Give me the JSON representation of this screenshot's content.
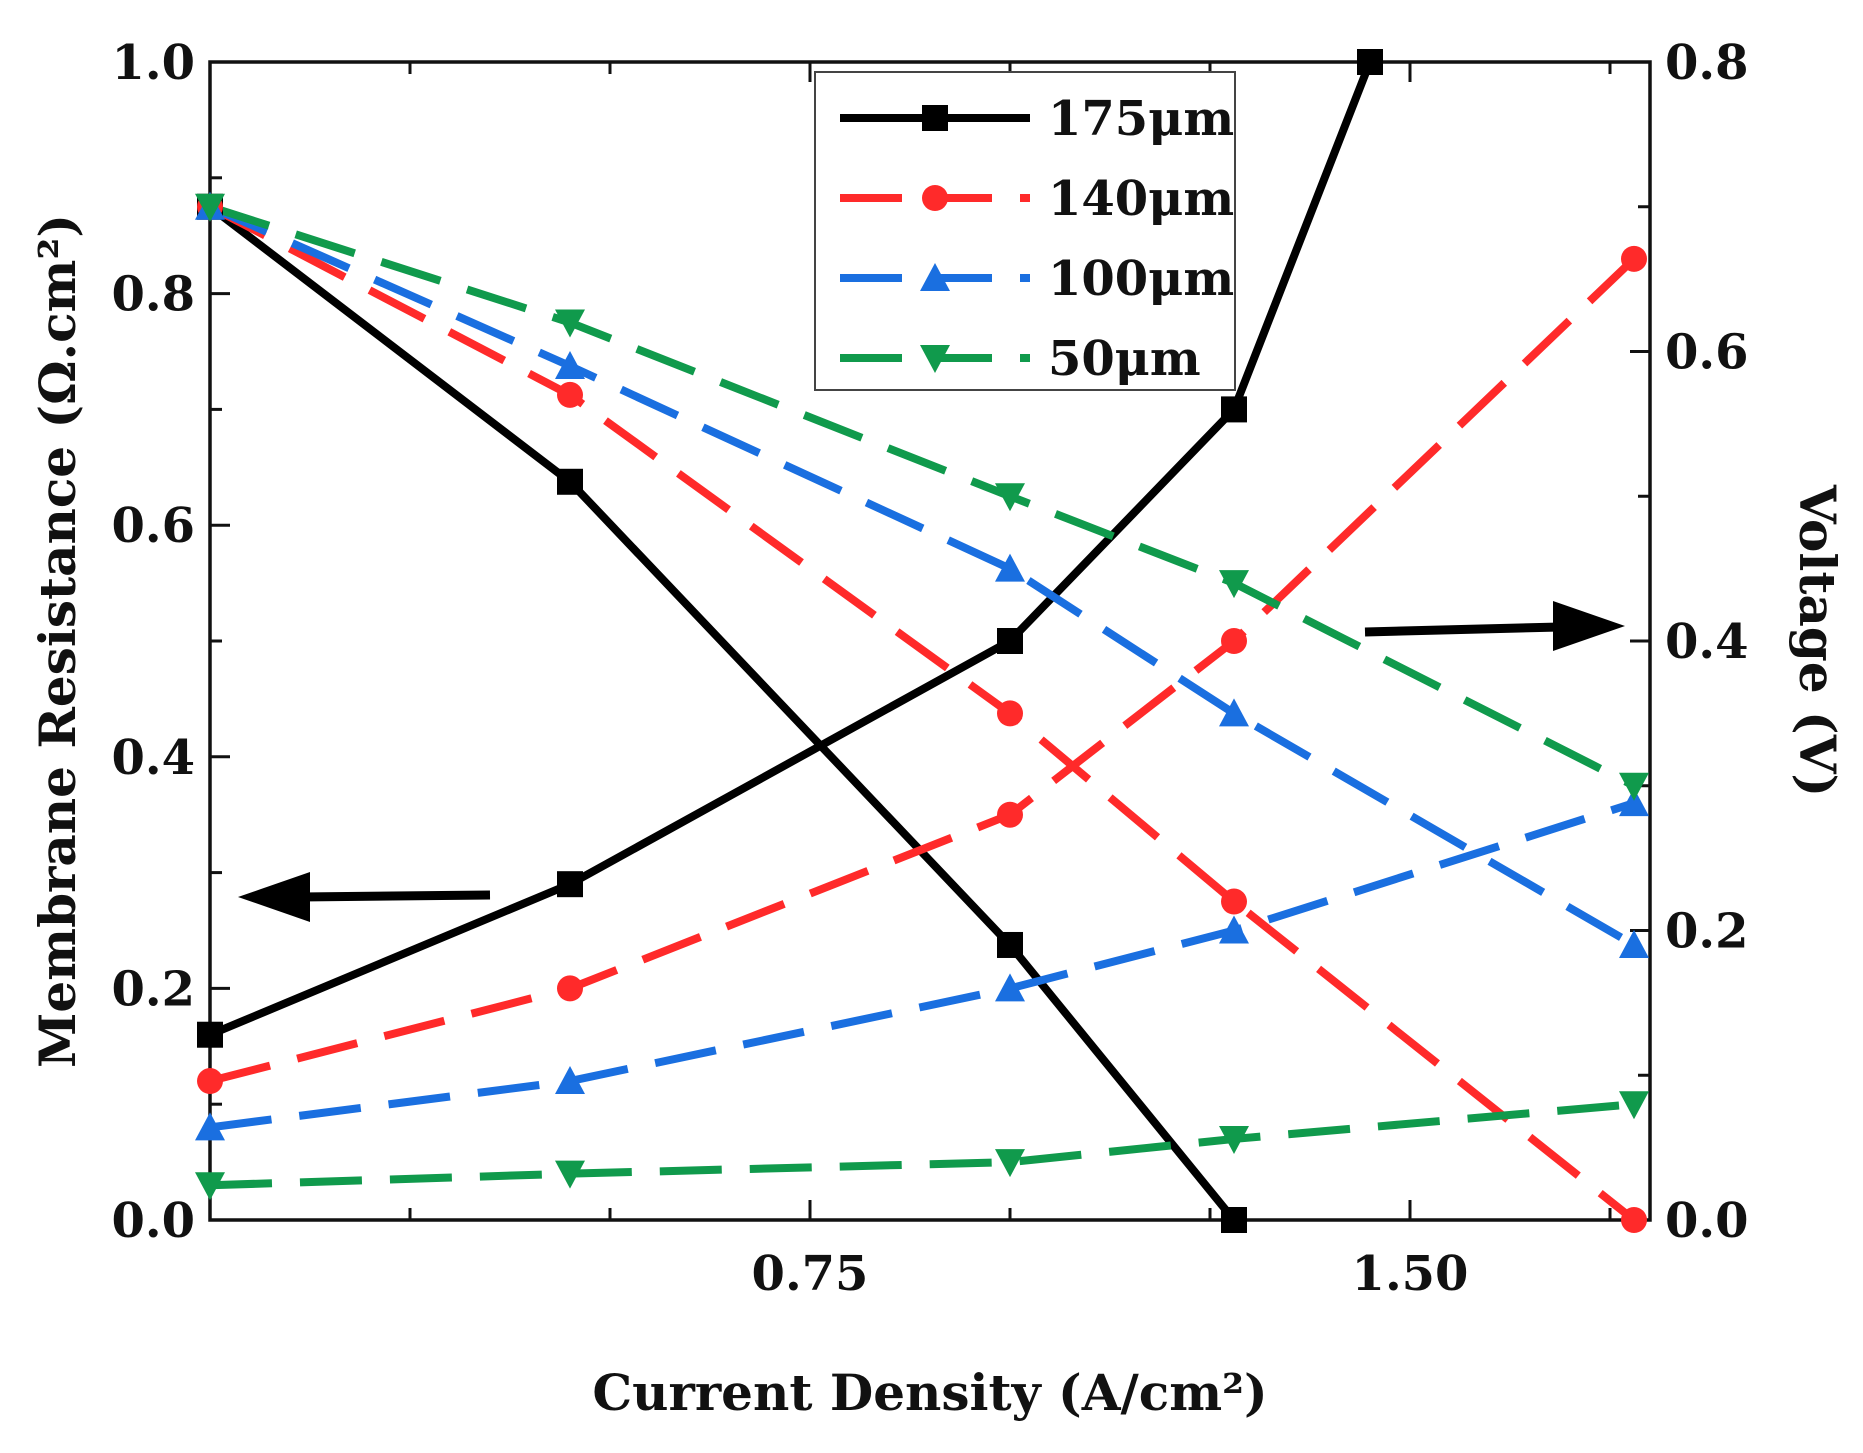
{
  "chart_data": {
    "type": "line",
    "title": "",
    "xlabel": "Current Density (A/cm²)",
    "ylabel_left": "Membrane Resistance (Ω.cm²)",
    "ylabel_right": "Voltage (V)",
    "xlim": [
      0.0,
      1.8
    ],
    "ylim_left": [
      0.0,
      1.0
    ],
    "ylim_right": [
      0.0,
      0.8
    ],
    "x_ticks": [
      0.75,
      1.5
    ],
    "x_tick_labels": [
      "0.75",
      "1.50"
    ],
    "y_left_ticks": [
      0.0,
      0.2,
      0.4,
      0.6,
      0.8,
      1.0
    ],
    "y_left_tick_labels": [
      "0.0",
      "0.2",
      "0.4",
      "0.6",
      "0.8",
      "1.0"
    ],
    "y_right_ticks": [
      0.0,
      0.2,
      0.4,
      0.6,
      0.8
    ],
    "y_right_tick_labels": [
      "0.0",
      "0.2",
      "0.4",
      "0.6",
      "0.8"
    ],
    "grid": false,
    "legend_position": "top-center",
    "series": [
      {
        "name": "175μm",
        "color": "#000000",
        "marker": "square",
        "dash": "solid",
        "resistance_x": [
          0.0,
          0.45,
          1.0,
          1.28,
          1.45
        ],
        "resistance": [
          0.16,
          0.29,
          0.5,
          0.7,
          1.0
        ],
        "voltage_x": [
          0.0,
          0.45,
          1.0,
          1.28
        ],
        "voltage": [
          0.7,
          0.51,
          0.19,
          0.0
        ]
      },
      {
        "name": "140μm",
        "color": "#ff2a2a",
        "marker": "circle",
        "dash": "dashed",
        "resistance_x": [
          0.0,
          0.45,
          1.0,
          1.28,
          1.78
        ],
        "resistance": [
          0.12,
          0.2,
          0.35,
          0.5,
          0.83
        ],
        "voltage_x": [
          0.0,
          0.45,
          1.0,
          1.28,
          1.78
        ],
        "voltage": [
          0.7,
          0.57,
          0.35,
          0.22,
          0.0
        ]
      },
      {
        "name": "100μm",
        "color": "#1a6fe0",
        "marker": "triangle-up",
        "dash": "dashed",
        "resistance_x": [
          0.0,
          0.45,
          1.0,
          1.28,
          1.78
        ],
        "resistance": [
          0.08,
          0.12,
          0.2,
          0.25,
          0.36
        ],
        "voltage_x": [
          0.0,
          0.45,
          1.0,
          1.28,
          1.78
        ],
        "voltage": [
          0.7,
          0.59,
          0.45,
          0.35,
          0.19
        ]
      },
      {
        "name": "50μm",
        "color": "#109a4c",
        "marker": "triangle-down",
        "dash": "dashed",
        "resistance_x": [
          0.0,
          0.45,
          1.0,
          1.28,
          1.78
        ],
        "resistance": [
          0.03,
          0.04,
          0.05,
          0.07,
          0.1
        ],
        "voltage_x": [
          0.0,
          0.45,
          1.0,
          1.28,
          1.78
        ],
        "voltage": [
          0.7,
          0.62,
          0.5,
          0.44,
          0.3
        ]
      }
    ],
    "annotations": [
      {
        "type": "arrow",
        "direction": "left",
        "meaning": "points to left axis (membrane resistance)"
      },
      {
        "type": "arrow",
        "direction": "right",
        "meaning": "points to right axis (voltage)"
      }
    ]
  }
}
